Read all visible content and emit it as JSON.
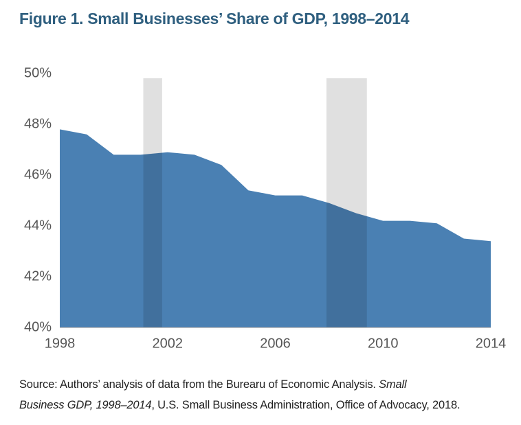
{
  "chart_data": {
    "type": "area",
    "title": "Figure 1. Small Businesses’ Share of GDP, 1998–2014",
    "x": [
      1998,
      1999,
      2000,
      2001,
      2002,
      2003,
      2004,
      2005,
      2006,
      2007,
      2008,
      2009,
      2010,
      2011,
      2012,
      2013,
      2014
    ],
    "values": [
      47.8,
      47.6,
      46.8,
      46.8,
      46.9,
      46.8,
      46.4,
      45.4,
      45.2,
      45.2,
      44.9,
      44.5,
      44.2,
      44.2,
      44.1,
      43.5,
      43.4
    ],
    "color": "#4a80b3",
    "shaded_ranges": [
      [
        2001.1,
        2001.8
      ],
      [
        2007.9,
        2009.4
      ]
    ],
    "shade_color": "rgba(0,0,0,0.12)",
    "xlim": [
      1998,
      2014
    ],
    "xticks": [
      1998,
      2002,
      2006,
      2010,
      2014
    ],
    "ylim": [
      40,
      50
    ],
    "yticks": [
      {
        "value": 40,
        "label": "40%"
      },
      {
        "value": 42,
        "label": "42%"
      },
      {
        "value": 44,
        "label": "44%"
      },
      {
        "value": 46,
        "label": "46%"
      },
      {
        "value": 48,
        "label": "48%"
      },
      {
        "value": 50,
        "label": "50%"
      }
    ],
    "grid": false,
    "source": [
      "Source: Authors’ analysis of data from the Burearu of Economic Analysis. ",
      "Small",
      "Business GDP, 1998–2014",
      ", U.S. Small Business Administration, Office of Advocacy, 2018."
    ]
  }
}
